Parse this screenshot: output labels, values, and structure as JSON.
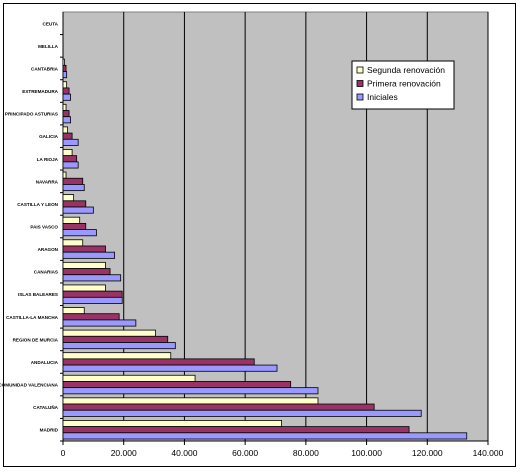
{
  "chart_data": {
    "type": "bar",
    "orientation": "horizontal",
    "categories": [
      "MADRID",
      "CATALUÑA",
      "COMUNIDAD VALENCIANA",
      "ANDALUCIA",
      "REGION DE MURCIA",
      "CASTILLA-LA MANCHA",
      "ISLAS BALEARES",
      "CANARIAS",
      "ARAGON",
      "PAIS VASCO",
      "CASTILLA Y LEON",
      "NAVARRA",
      "LA RIOJA",
      "GALICIA",
      "PRINCIPADO ASTURIAS",
      "EXTREMADURA",
      "CANTABRIA",
      "MELILLA",
      "CEUTA"
    ],
    "series": [
      {
        "name": "Segunda renovación",
        "color": "#ffffcc",
        "values": [
          72000,
          84000,
          43500,
          35500,
          30500,
          7000,
          14000,
          14000,
          6500,
          5500,
          3500,
          1000,
          3000,
          1500,
          1000,
          1200,
          500,
          0,
          0
        ]
      },
      {
        "name": "Primera renovación",
        "color": "#993366",
        "values": [
          114000,
          102500,
          75000,
          63000,
          34500,
          18500,
          19500,
          15500,
          14000,
          7500,
          7500,
          6500,
          4500,
          3000,
          2000,
          2000,
          1000,
          0,
          0
        ]
      },
      {
        "name": "Iniciales",
        "color": "#9999ff",
        "values": [
          133000,
          118000,
          84000,
          70500,
          37000,
          24000,
          19500,
          19000,
          17000,
          11000,
          10000,
          7000,
          5000,
          5000,
          2500,
          2500,
          1200,
          0,
          0
        ]
      }
    ],
    "xlim": [
      0,
      140000
    ],
    "xticks": [
      "0",
      "20.000",
      "40.000",
      "60.000",
      "80.000",
      "100.000",
      "120.000",
      "140.000"
    ],
    "tick_values": [
      0,
      20000,
      40000,
      60000,
      80000,
      100000,
      120000,
      140000
    ],
    "grid": true,
    "legend_position": "top-right",
    "plot_background": "#c0c0c0"
  }
}
